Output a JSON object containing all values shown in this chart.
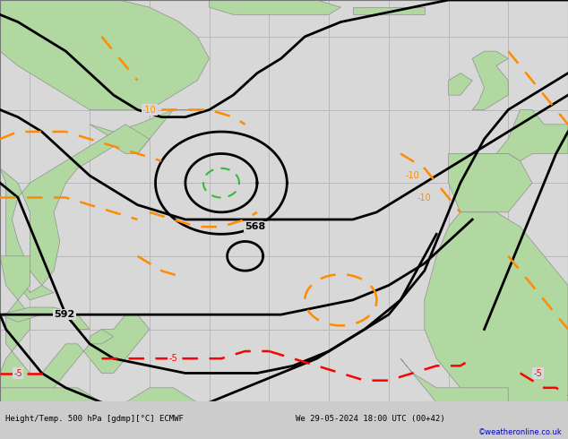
{
  "title_left": "Height/Temp. 500 hPa [gdmp][°C] ECMWF",
  "title_right": "We 29-05-2024 18:00 UTC (00+42)",
  "copyright": "©weatheronline.co.uk",
  "background_color": "#cccccc",
  "land_color": "#b0d8a0",
  "ocean_color": "#d8d8d8",
  "grid_color": "#b8b8b8",
  "figsize": [
    6.34,
    4.9
  ],
  "dpi": 100,
  "xlim": [
    -85,
    10
  ],
  "ylim": [
    5,
    65
  ],
  "title_fontsize": 8,
  "copyright_color": "#0000cc",
  "black_lw": 2.0,
  "orange_lw": 1.8,
  "red_lw": 1.8,
  "green_lw": 1.5,
  "dash_on": 7,
  "dash_off": 5
}
